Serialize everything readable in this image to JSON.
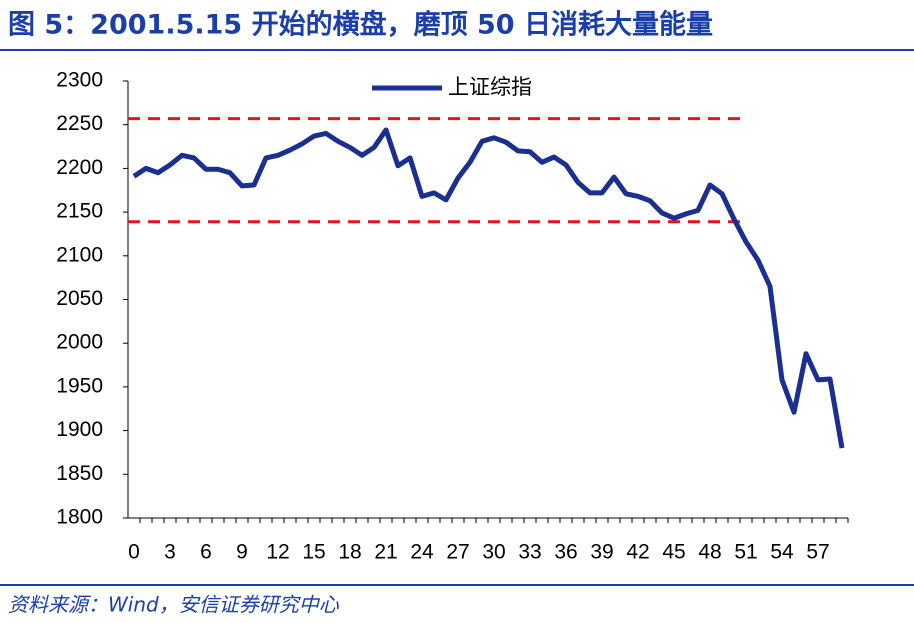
{
  "page": {
    "title": "图 5：2001.5.15 开始的横盘，磨顶 50 日消耗大量能量",
    "source": "资料来源：Wind，安信证券研究中心"
  },
  "chart_data": {
    "type": "line",
    "categories": [
      0,
      null,
      null,
      3,
      null,
      null,
      6,
      null,
      null,
      9,
      null,
      null,
      12,
      null,
      null,
      15,
      null,
      null,
      18,
      null,
      null,
      21,
      null,
      null,
      24,
      null,
      null,
      27,
      null,
      null,
      30,
      null,
      null,
      33,
      null,
      null,
      36,
      null,
      null,
      39,
      null,
      null,
      42,
      null,
      null,
      45,
      null,
      null,
      48,
      null,
      null,
      51,
      null,
      null,
      54,
      null,
      null,
      57,
      null,
      null
    ],
    "series": [
      {
        "name": "上证综指",
        "color": "#1a2f8f",
        "values": [
          2191,
          2200,
          2195,
          2204,
          2215,
          2212,
          2199,
          2199,
          2195,
          2180,
          2181,
          2212,
          2215,
          2221,
          2228,
          2237,
          2240,
          2231,
          2224,
          2215,
          2224,
          2244,
          2203,
          2212,
          2168,
          2172,
          2164,
          2189,
          2207,
          2231,
          2235,
          2230,
          2220,
          2219,
          2207,
          2213,
          2204,
          2184,
          2172,
          2172,
          2190,
          2171,
          2168,
          2163,
          2149,
          2143,
          2148,
          2152,
          2181,
          2171,
          2142,
          2116,
          2095,
          2065,
          1958,
          1921,
          1988,
          1958,
          1959,
          1880
        ]
      }
    ],
    "reference_lines": [
      {
        "value": 2257,
        "color": "#e8141b"
      },
      {
        "value": 2139,
        "color": "#e8141b"
      }
    ],
    "ylim": [
      1800,
      2300
    ],
    "yticks": [
      1800,
      1850,
      1900,
      1950,
      2000,
      2050,
      2100,
      2150,
      2200,
      2250,
      2300
    ],
    "legend": "top"
  }
}
